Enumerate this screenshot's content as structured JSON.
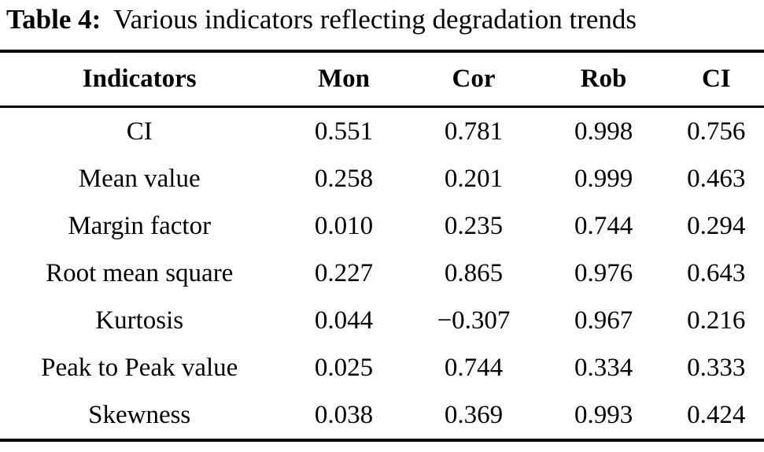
{
  "caption": {
    "label": "Table 4:",
    "text": "Various indicators reflecting degradation trends"
  },
  "table": {
    "columns": [
      "Indicators",
      "Mon",
      "Cor",
      "Rob",
      "CI"
    ],
    "rows": [
      {
        "indicator": "CI",
        "values": [
          "0.551",
          "0.781",
          "0.998",
          "0.756"
        ]
      },
      {
        "indicator": "Mean value",
        "values": [
          "0.258",
          "0.201",
          "0.999",
          "0.463"
        ]
      },
      {
        "indicator": "Margin factor",
        "values": [
          "0.010",
          "0.235",
          "0.744",
          "0.294"
        ]
      },
      {
        "indicator": "Root mean square",
        "values": [
          "0.227",
          "0.865",
          "0.976",
          "0.643"
        ]
      },
      {
        "indicator": "Kurtosis",
        "values": [
          "0.044",
          "−0.307",
          "0.967",
          "0.216"
        ]
      },
      {
        "indicator": "Peak to Peak value",
        "values": [
          "0.025",
          "0.744",
          "0.334",
          "0.333"
        ]
      },
      {
        "indicator": "Skewness",
        "values": [
          "0.038",
          "0.369",
          "0.993",
          "0.424"
        ]
      }
    ]
  },
  "colors": {
    "text": "#000000",
    "background": "#ffffff",
    "rule": "#000000"
  }
}
